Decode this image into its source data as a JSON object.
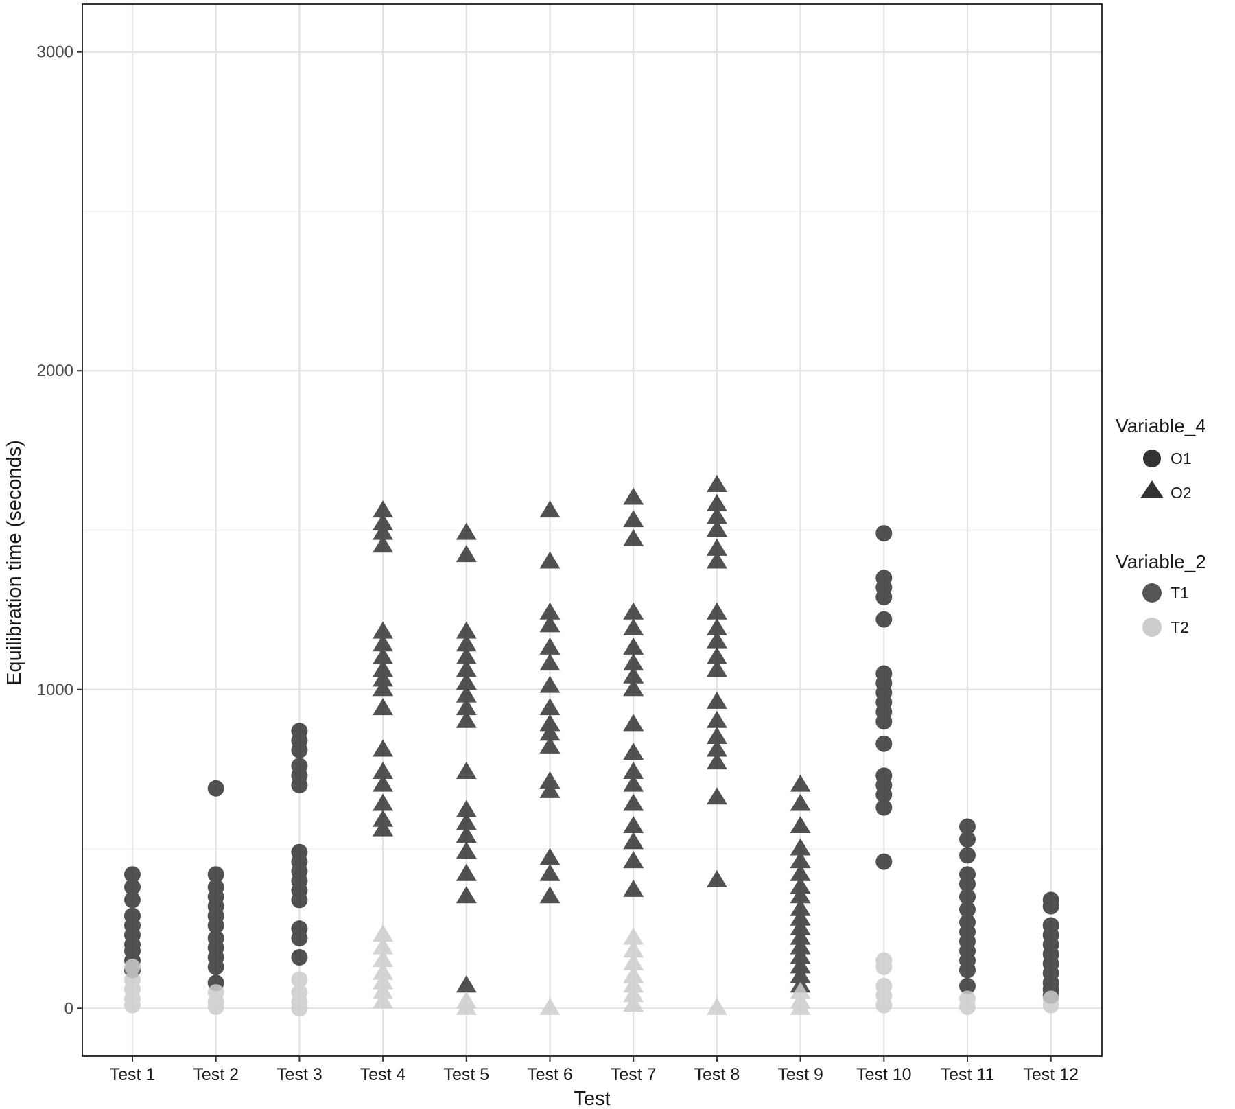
{
  "chart_data": {
    "type": "scatter",
    "xlabel": "Test",
    "ylabel": "Equilibration time (seconds)",
    "categories": [
      "Test 1",
      "Test 2",
      "Test 3",
      "Test 4",
      "Test 5",
      "Test 6",
      "Test 7",
      "Test 8",
      "Test 9",
      "Test 10",
      "Test 11",
      "Test 12"
    ],
    "ylim": [
      -150,
      3150
    ],
    "yticks": [
      0,
      1000,
      2000,
      3000
    ],
    "grid": true,
    "legend_position": "right",
    "legends": [
      {
        "title": "Variable_4",
        "items": [
          {
            "label": "O1",
            "shape": "circle"
          },
          {
            "label": "O2",
            "shape": "triangle"
          }
        ]
      },
      {
        "title": "Variable_2",
        "items": [
          {
            "label": "T1",
            "color": "#333333"
          },
          {
            "label": "T2",
            "color": "#cccccc"
          }
        ]
      }
    ],
    "colors": {
      "T1": "#333333",
      "T2": "#cccccc",
      "panel_border": "#333333",
      "grid": "#e5e5e5"
    },
    "series": [
      {
        "name": "O1 T1",
        "shape": "circle",
        "color": "#333333",
        "points": [
          {
            "x": "Test 1",
            "y": 420
          },
          {
            "x": "Test 1",
            "y": 380
          },
          {
            "x": "Test 1",
            "y": 340
          },
          {
            "x": "Test 1",
            "y": 290
          },
          {
            "x": "Test 1",
            "y": 260
          },
          {
            "x": "Test 1",
            "y": 230
          },
          {
            "x": "Test 1",
            "y": 200
          },
          {
            "x": "Test 1",
            "y": 180
          },
          {
            "x": "Test 1",
            "y": 150
          },
          {
            "x": "Test 1",
            "y": 120
          },
          {
            "x": "Test 2",
            "y": 690
          },
          {
            "x": "Test 2",
            "y": 420
          },
          {
            "x": "Test 2",
            "y": 380
          },
          {
            "x": "Test 2",
            "y": 350
          },
          {
            "x": "Test 2",
            "y": 320
          },
          {
            "x": "Test 2",
            "y": 290
          },
          {
            "x": "Test 2",
            "y": 260
          },
          {
            "x": "Test 2",
            "y": 220
          },
          {
            "x": "Test 2",
            "y": 190
          },
          {
            "x": "Test 2",
            "y": 160
          },
          {
            "x": "Test 2",
            "y": 130
          },
          {
            "x": "Test 2",
            "y": 80
          },
          {
            "x": "Test 3",
            "y": 870
          },
          {
            "x": "Test 3",
            "y": 840
          },
          {
            "x": "Test 3",
            "y": 810
          },
          {
            "x": "Test 3",
            "y": 760
          },
          {
            "x": "Test 3",
            "y": 730
          },
          {
            "x": "Test 3",
            "y": 700
          },
          {
            "x": "Test 3",
            "y": 490
          },
          {
            "x": "Test 3",
            "y": 460
          },
          {
            "x": "Test 3",
            "y": 430
          },
          {
            "x": "Test 3",
            "y": 400
          },
          {
            "x": "Test 3",
            "y": 370
          },
          {
            "x": "Test 3",
            "y": 340
          },
          {
            "x": "Test 3",
            "y": 250
          },
          {
            "x": "Test 3",
            "y": 220
          },
          {
            "x": "Test 3",
            "y": 160
          },
          {
            "x": "Test 10",
            "y": 1490
          },
          {
            "x": "Test 10",
            "y": 1350
          },
          {
            "x": "Test 10",
            "y": 1320
          },
          {
            "x": "Test 10",
            "y": 1290
          },
          {
            "x": "Test 10",
            "y": 1220
          },
          {
            "x": "Test 10",
            "y": 1050
          },
          {
            "x": "Test 10",
            "y": 1020
          },
          {
            "x": "Test 10",
            "y": 990
          },
          {
            "x": "Test 10",
            "y": 960
          },
          {
            "x": "Test 10",
            "y": 930
          },
          {
            "x": "Test 10",
            "y": 900
          },
          {
            "x": "Test 10",
            "y": 830
          },
          {
            "x": "Test 10",
            "y": 730
          },
          {
            "x": "Test 10",
            "y": 700
          },
          {
            "x": "Test 10",
            "y": 670
          },
          {
            "x": "Test 10",
            "y": 630
          },
          {
            "x": "Test 10",
            "y": 460
          },
          {
            "x": "Test 11",
            "y": 570
          },
          {
            "x": "Test 11",
            "y": 530
          },
          {
            "x": "Test 11",
            "y": 480
          },
          {
            "x": "Test 11",
            "y": 420
          },
          {
            "x": "Test 11",
            "y": 390
          },
          {
            "x": "Test 11",
            "y": 350
          },
          {
            "x": "Test 11",
            "y": 310
          },
          {
            "x": "Test 11",
            "y": 270
          },
          {
            "x": "Test 11",
            "y": 240
          },
          {
            "x": "Test 11",
            "y": 210
          },
          {
            "x": "Test 11",
            "y": 180
          },
          {
            "x": "Test 11",
            "y": 150
          },
          {
            "x": "Test 11",
            "y": 120
          },
          {
            "x": "Test 11",
            "y": 70
          },
          {
            "x": "Test 12",
            "y": 340
          },
          {
            "x": "Test 12",
            "y": 320
          },
          {
            "x": "Test 12",
            "y": 260
          },
          {
            "x": "Test 12",
            "y": 230
          },
          {
            "x": "Test 12",
            "y": 200
          },
          {
            "x": "Test 12",
            "y": 170
          },
          {
            "x": "Test 12",
            "y": 140
          },
          {
            "x": "Test 12",
            "y": 110
          },
          {
            "x": "Test 12",
            "y": 80
          },
          {
            "x": "Test 12",
            "y": 60
          },
          {
            "x": "Test 12",
            "y": 40
          }
        ]
      },
      {
        "name": "O1 T2",
        "shape": "circle",
        "color": "#cccccc",
        "points": [
          {
            "x": "Test 1",
            "y": 130
          },
          {
            "x": "Test 1",
            "y": 90
          },
          {
            "x": "Test 1",
            "y": 60
          },
          {
            "x": "Test 1",
            "y": 30
          },
          {
            "x": "Test 1",
            "y": 10
          },
          {
            "x": "Test 2",
            "y": 50
          },
          {
            "x": "Test 2",
            "y": 20
          },
          {
            "x": "Test 2",
            "y": 5
          },
          {
            "x": "Test 3",
            "y": 90
          },
          {
            "x": "Test 3",
            "y": 50
          },
          {
            "x": "Test 3",
            "y": 20
          },
          {
            "x": "Test 3",
            "y": 0
          },
          {
            "x": "Test 10",
            "y": 150
          },
          {
            "x": "Test 10",
            "y": 130
          },
          {
            "x": "Test 10",
            "y": 70
          },
          {
            "x": "Test 10",
            "y": 40
          },
          {
            "x": "Test 10",
            "y": 10
          },
          {
            "x": "Test 11",
            "y": 30
          },
          {
            "x": "Test 11",
            "y": 5
          },
          {
            "x": "Test 12",
            "y": 30
          },
          {
            "x": "Test 12",
            "y": 10
          }
        ]
      },
      {
        "name": "O2 T1",
        "shape": "triangle",
        "color": "#333333",
        "points": [
          {
            "x": "Test 4",
            "y": 1560
          },
          {
            "x": "Test 4",
            "y": 1520
          },
          {
            "x": "Test 4",
            "y": 1490
          },
          {
            "x": "Test 4",
            "y": 1450
          },
          {
            "x": "Test 4",
            "y": 1180
          },
          {
            "x": "Test 4",
            "y": 1140
          },
          {
            "x": "Test 4",
            "y": 1100
          },
          {
            "x": "Test 4",
            "y": 1060
          },
          {
            "x": "Test 4",
            "y": 1030
          },
          {
            "x": "Test 4",
            "y": 1000
          },
          {
            "x": "Test 4",
            "y": 940
          },
          {
            "x": "Test 4",
            "y": 810
          },
          {
            "x": "Test 4",
            "y": 740
          },
          {
            "x": "Test 4",
            "y": 700
          },
          {
            "x": "Test 4",
            "y": 640
          },
          {
            "x": "Test 4",
            "y": 590
          },
          {
            "x": "Test 4",
            "y": 560
          },
          {
            "x": "Test 5",
            "y": 1490
          },
          {
            "x": "Test 5",
            "y": 1420
          },
          {
            "x": "Test 5",
            "y": 1180
          },
          {
            "x": "Test 5",
            "y": 1140
          },
          {
            "x": "Test 5",
            "y": 1100
          },
          {
            "x": "Test 5",
            "y": 1060
          },
          {
            "x": "Test 5",
            "y": 1020
          },
          {
            "x": "Test 5",
            "y": 980
          },
          {
            "x": "Test 5",
            "y": 940
          },
          {
            "x": "Test 5",
            "y": 900
          },
          {
            "x": "Test 5",
            "y": 740
          },
          {
            "x": "Test 5",
            "y": 620
          },
          {
            "x": "Test 5",
            "y": 580
          },
          {
            "x": "Test 5",
            "y": 540
          },
          {
            "x": "Test 5",
            "y": 490
          },
          {
            "x": "Test 5",
            "y": 420
          },
          {
            "x": "Test 5",
            "y": 350
          },
          {
            "x": "Test 5",
            "y": 70
          },
          {
            "x": "Test 6",
            "y": 1560
          },
          {
            "x": "Test 6",
            "y": 1400
          },
          {
            "x": "Test 6",
            "y": 1240
          },
          {
            "x": "Test 6",
            "y": 1200
          },
          {
            "x": "Test 6",
            "y": 1130
          },
          {
            "x": "Test 6",
            "y": 1080
          },
          {
            "x": "Test 6",
            "y": 1010
          },
          {
            "x": "Test 6",
            "y": 940
          },
          {
            "x": "Test 6",
            "y": 890
          },
          {
            "x": "Test 6",
            "y": 860
          },
          {
            "x": "Test 6",
            "y": 820
          },
          {
            "x": "Test 6",
            "y": 710
          },
          {
            "x": "Test 6",
            "y": 680
          },
          {
            "x": "Test 6",
            "y": 470
          },
          {
            "x": "Test 6",
            "y": 420
          },
          {
            "x": "Test 6",
            "y": 350
          },
          {
            "x": "Test 7",
            "y": 1600
          },
          {
            "x": "Test 7",
            "y": 1530
          },
          {
            "x": "Test 7",
            "y": 1470
          },
          {
            "x": "Test 7",
            "y": 1240
          },
          {
            "x": "Test 7",
            "y": 1190
          },
          {
            "x": "Test 7",
            "y": 1130
          },
          {
            "x": "Test 7",
            "y": 1080
          },
          {
            "x": "Test 7",
            "y": 1040
          },
          {
            "x": "Test 7",
            "y": 1000
          },
          {
            "x": "Test 7",
            "y": 890
          },
          {
            "x": "Test 7",
            "y": 800
          },
          {
            "x": "Test 7",
            "y": 740
          },
          {
            "x": "Test 7",
            "y": 700
          },
          {
            "x": "Test 7",
            "y": 640
          },
          {
            "x": "Test 7",
            "y": 570
          },
          {
            "x": "Test 7",
            "y": 520
          },
          {
            "x": "Test 7",
            "y": 460
          },
          {
            "x": "Test 7",
            "y": 370
          },
          {
            "x": "Test 8",
            "y": 1640
          },
          {
            "x": "Test 8",
            "y": 1580
          },
          {
            "x": "Test 8",
            "y": 1540
          },
          {
            "x": "Test 8",
            "y": 1500
          },
          {
            "x": "Test 8",
            "y": 1440
          },
          {
            "x": "Test 8",
            "y": 1400
          },
          {
            "x": "Test 8",
            "y": 1240
          },
          {
            "x": "Test 8",
            "y": 1190
          },
          {
            "x": "Test 8",
            "y": 1150
          },
          {
            "x": "Test 8",
            "y": 1100
          },
          {
            "x": "Test 8",
            "y": 1060
          },
          {
            "x": "Test 8",
            "y": 960
          },
          {
            "x": "Test 8",
            "y": 900
          },
          {
            "x": "Test 8",
            "y": 850
          },
          {
            "x": "Test 8",
            "y": 810
          },
          {
            "x": "Test 8",
            "y": 770
          },
          {
            "x": "Test 8",
            "y": 660
          },
          {
            "x": "Test 8",
            "y": 400
          },
          {
            "x": "Test 9",
            "y": 700
          },
          {
            "x": "Test 9",
            "y": 640
          },
          {
            "x": "Test 9",
            "y": 570
          },
          {
            "x": "Test 9",
            "y": 500
          },
          {
            "x": "Test 9",
            "y": 460
          },
          {
            "x": "Test 9",
            "y": 420
          },
          {
            "x": "Test 9",
            "y": 380
          },
          {
            "x": "Test 9",
            "y": 350
          },
          {
            "x": "Test 9",
            "y": 310
          },
          {
            "x": "Test 9",
            "y": 280
          },
          {
            "x": "Test 9",
            "y": 250
          },
          {
            "x": "Test 9",
            "y": 220
          },
          {
            "x": "Test 9",
            "y": 190
          },
          {
            "x": "Test 9",
            "y": 160
          },
          {
            "x": "Test 9",
            "y": 130
          },
          {
            "x": "Test 9",
            "y": 100
          },
          {
            "x": "Test 9",
            "y": 70
          }
        ]
      },
      {
        "name": "O2 T2",
        "shape": "triangle",
        "color": "#cccccc",
        "points": [
          {
            "x": "Test 4",
            "y": 230
          },
          {
            "x": "Test 4",
            "y": 190
          },
          {
            "x": "Test 4",
            "y": 150
          },
          {
            "x": "Test 4",
            "y": 110
          },
          {
            "x": "Test 4",
            "y": 80
          },
          {
            "x": "Test 4",
            "y": 50
          },
          {
            "x": "Test 4",
            "y": 20
          },
          {
            "x": "Test 5",
            "y": 20
          },
          {
            "x": "Test 5",
            "y": 0
          },
          {
            "x": "Test 6",
            "y": 0
          },
          {
            "x": "Test 7",
            "y": 220
          },
          {
            "x": "Test 7",
            "y": 180
          },
          {
            "x": "Test 7",
            "y": 140
          },
          {
            "x": "Test 7",
            "y": 100
          },
          {
            "x": "Test 7",
            "y": 70
          },
          {
            "x": "Test 7",
            "y": 40
          },
          {
            "x": "Test 7",
            "y": 10
          },
          {
            "x": "Test 8",
            "y": 0
          },
          {
            "x": "Test 9",
            "y": 50
          },
          {
            "x": "Test 9",
            "y": 20
          },
          {
            "x": "Test 9",
            "y": 0
          }
        ]
      }
    ]
  }
}
